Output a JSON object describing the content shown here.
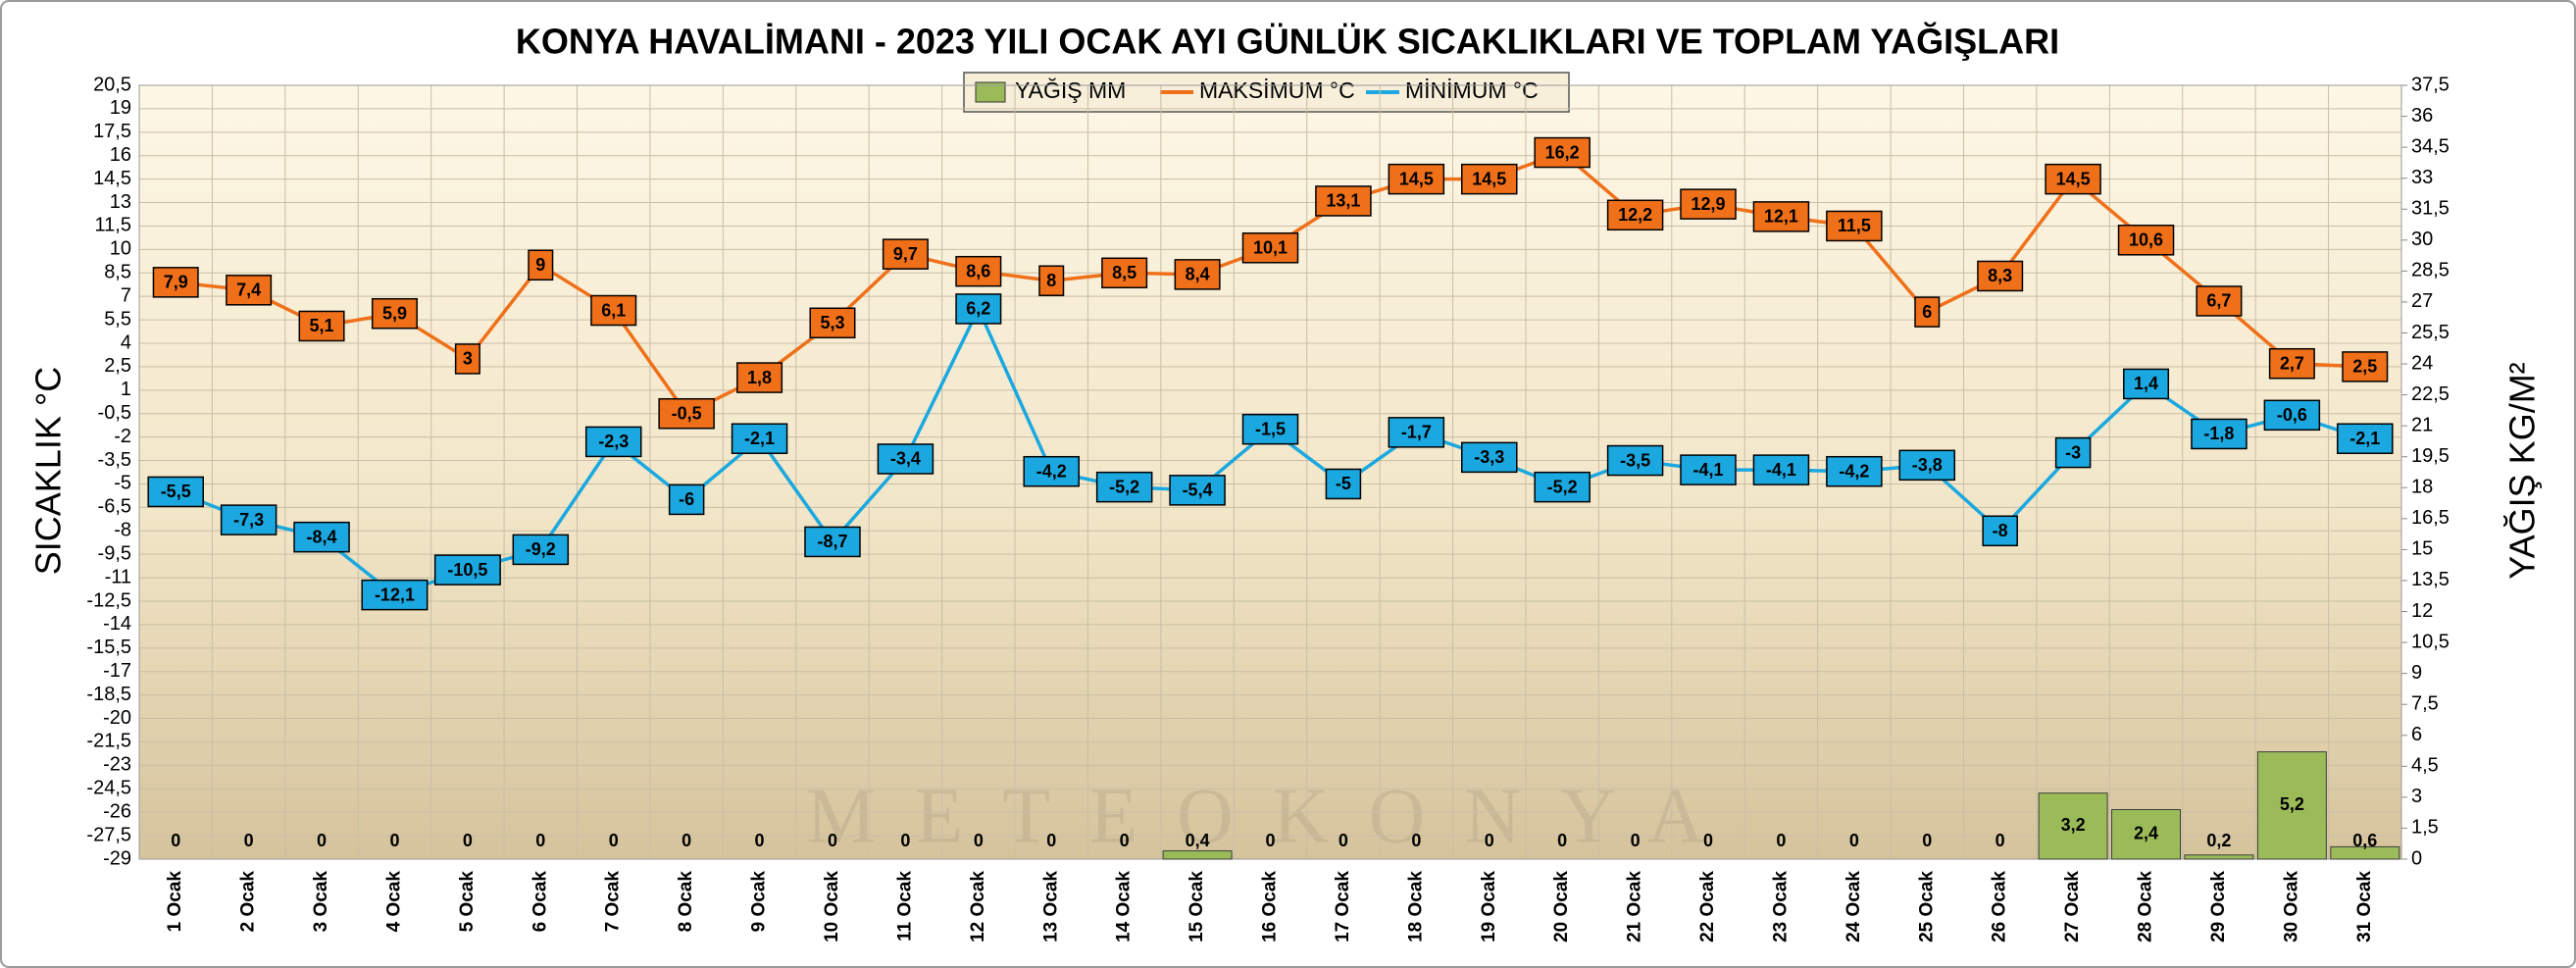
{
  "chart_data": {
    "type": "combo",
    "title": "KONYA HAVALİMANI - 2023 YILI OCAK AYI GÜNLÜK SICAKLIKLARI VE TOPLAM YAĞIŞLARI",
    "y_label": "SICAKLIK °C",
    "y2_label": "YAĞIŞ  KG/M²",
    "watermark": "METEOKONYA",
    "legend": "top",
    "grid": true,
    "categories": [
      "1 Ocak",
      "2 Ocak",
      "3 Ocak",
      "4 Ocak",
      "5 Ocak",
      "6 Ocak",
      "7 Ocak",
      "8 Ocak",
      "9 Ocak",
      "10 Ocak",
      "11 Ocak",
      "12 Ocak",
      "13 Ocak",
      "14 Ocak",
      "15 Ocak",
      "16 Ocak",
      "17 Ocak",
      "18 Ocak",
      "19 Ocak",
      "20 Ocak",
      "21 Ocak",
      "22 Ocak",
      "23 Ocak",
      "24 Ocak",
      "25 Ocak",
      "26 Ocak",
      "27 Ocak",
      "28 Ocak",
      "29 Ocak",
      "30 Ocak",
      "31 Ocak"
    ],
    "ylim": [
      -29,
      20.5
    ],
    "yticks": [
      {
        "value": 20.5,
        "label": "20,5"
      },
      19,
      {
        "value": 17.5,
        "label": "17,5"
      },
      16,
      {
        "value": 14.5,
        "label": "14,5"
      },
      13,
      {
        "value": 11.5,
        "label": "11,5"
      },
      10,
      {
        "value": 8.5,
        "label": "8,5"
      },
      7,
      {
        "value": 5.5,
        "label": "5,5"
      },
      4,
      {
        "value": 2.5,
        "label": "2,5"
      },
      1,
      {
        "value": -0.5,
        "label": "-0,5"
      },
      -2,
      {
        "value": -3.5,
        "label": "-3,5"
      },
      -5,
      {
        "value": -6.5,
        "label": "-6,5"
      },
      -8,
      {
        "value": -9.5,
        "label": "-9,5"
      },
      -11,
      {
        "value": -12.5,
        "label": "-12,5"
      },
      -14,
      {
        "value": -15.5,
        "label": "-15,5"
      },
      -17,
      {
        "value": -18.5,
        "label": "-18,5"
      },
      -20,
      {
        "value": -21.5,
        "label": "-21,5"
      },
      -23,
      {
        "value": -24.5,
        "label": "-24,5"
      },
      -26,
      {
        "value": -27.5,
        "label": "-27,5"
      },
      -29
    ],
    "y2lim": [
      0,
      37.5
    ],
    "y2ticks": [
      {
        "value": 37.5,
        "label": "37,5"
      },
      36,
      {
        "value": 34.5,
        "label": "34,5"
      },
      33,
      {
        "value": 31.5,
        "label": "31,5"
      },
      30,
      {
        "value": 28.5,
        "label": "28,5"
      },
      27,
      {
        "value": 25.5,
        "label": "25,5"
      },
      24,
      {
        "value": 22.5,
        "label": "22,5"
      },
      21,
      {
        "value": 19.5,
        "label": "19,5"
      },
      18,
      {
        "value": 16.5,
        "label": "16,5"
      },
      15,
      {
        "value": 13.5,
        "label": "13,5"
      },
      12,
      {
        "value": 10.5,
        "label": "10,5"
      },
      9,
      {
        "value": 7.5,
        "label": "7,5"
      },
      6,
      {
        "value": 4.5,
        "label": "4,5"
      },
      3,
      {
        "value": 1.5,
        "label": "1,5"
      },
      0
    ],
    "series": [
      {
        "name": "YAĞIŞ MM",
        "type": "bar",
        "axis": "y2",
        "color": "#9bbb59",
        "values": [
          0,
          0,
          0,
          0,
          0,
          0,
          0,
          0,
          0,
          0,
          0,
          0,
          0,
          0,
          0.4,
          0,
          0,
          0,
          0,
          0,
          0,
          0,
          0,
          0,
          0,
          0,
          3.2,
          2.4,
          0.2,
          5.2,
          0.6
        ],
        "value_labels": [
          "0",
          "0",
          "0",
          "0",
          "0",
          "0",
          "0",
          "0",
          "0",
          "0",
          "0",
          "0",
          "0",
          "0",
          "0,4",
          "0",
          "0",
          "0",
          "0",
          "0",
          "0",
          "0",
          "0",
          "0",
          "0",
          "0",
          "3,2",
          "2,4",
          "0,2",
          "5,2",
          "0,6"
        ]
      },
      {
        "name": "MAKSİMUM °C",
        "type": "line",
        "color": "#f07019",
        "values": [
          7.9,
          7.4,
          5.1,
          5.9,
          3,
          9,
          6.1,
          -0.5,
          1.8,
          5.3,
          9.7,
          8.6,
          8,
          8.5,
          8.4,
          10.1,
          13.1,
          14.5,
          14.5,
          16.2,
          12.2,
          12.9,
          12.1,
          11.5,
          6,
          8.3,
          14.5,
          10.6,
          6.7,
          2.7,
          2.5
        ],
        "value_labels": [
          "7,9",
          "7,4",
          "5,1",
          "5,9",
          "3",
          "9",
          "6,1",
          "-0,5",
          "1,8",
          "5,3",
          "9,7",
          "8,6",
          "8",
          "8,5",
          "8,4",
          "10,1",
          "13,1",
          "14,5",
          "14,5",
          "16,2",
          "12,2",
          "12,9",
          "12,1",
          "11,5",
          "6",
          "8,3",
          "14,5",
          "10,6",
          "6,7",
          "2,7",
          "2,5"
        ]
      },
      {
        "name": "MİNİMUM °C",
        "type": "line",
        "color": "#1ba8e0",
        "values": [
          -5.5,
          -7.3,
          -8.4,
          -12.1,
          -10.5,
          -9.2,
          -2.3,
          -6,
          -2.1,
          -8.7,
          -3.4,
          6.2,
          -4.2,
          -5.2,
          -5.4,
          -1.5,
          -5,
          -1.7,
          -3.3,
          -5.2,
          -3.5,
          -4.1,
          -4.1,
          -4.2,
          -3.8,
          -8,
          -3,
          1.4,
          -1.8,
          -0.6,
          -2.1
        ],
        "value_labels": [
          "-5,5",
          "-7,3",
          "-8,4",
          "-12,1",
          "-10,5",
          "-9,2",
          "-2,3",
          "-6",
          "-2,1",
          "-8,7",
          "-3,4",
          "6,2",
          "-4,2",
          "-5,2",
          "-5,4",
          "-1,5",
          "-5",
          "-1,7",
          "-3,3",
          "-5,2",
          "-3,5",
          "-4,1",
          "-4,1",
          "-4,2",
          "-3,8",
          "-8",
          "-3",
          "1,4",
          "-1,8",
          "-0,6",
          "-2,1"
        ]
      }
    ]
  }
}
